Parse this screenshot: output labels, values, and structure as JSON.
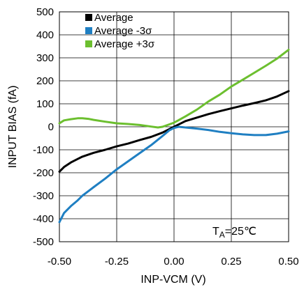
{
  "chart_data": {
    "type": "line",
    "xlabel": "INP-VCM (V)",
    "ylabel": "INPUT BIAS (fA)",
    "xlim": [
      -0.5,
      0.5
    ],
    "ylim": [
      -500,
      500
    ],
    "x_ticks": [
      "-0.50",
      "-0.25",
      "0.00",
      "0.25",
      "0.50"
    ],
    "y_ticks": [
      "500",
      "400",
      "300",
      "200",
      "100",
      "0",
      "-100",
      "-200",
      "-300",
      "-400",
      "-500"
    ],
    "grid": true,
    "legend_position": "top-left",
    "annotation": {
      "main": "T",
      "sub": "A",
      "rest": "=25℃"
    },
    "series": [
      {
        "name": "Average",
        "color": "#000000",
        "x": [
          -0.5,
          -0.48,
          -0.45,
          -0.42,
          -0.4,
          -0.37,
          -0.35,
          -0.3,
          -0.25,
          -0.2,
          -0.15,
          -0.1,
          -0.05,
          0.0,
          0.05,
          0.1,
          0.15,
          0.2,
          0.25,
          0.3,
          0.35,
          0.4,
          0.45,
          0.5
        ],
        "y": [
          -195,
          -175,
          -155,
          -140,
          -130,
          -120,
          -113,
          -100,
          -85,
          -73,
          -58,
          -44,
          -25,
          0,
          25,
          40,
          55,
          68,
          80,
          92,
          103,
          115,
          132,
          155
        ]
      },
      {
        "name": "Average -3σ",
        "color": "#1f7fc2",
        "x": [
          -0.5,
          -0.48,
          -0.45,
          -0.42,
          -0.4,
          -0.35,
          -0.3,
          -0.25,
          -0.2,
          -0.15,
          -0.1,
          -0.05,
          -0.02,
          0.0,
          0.02,
          0.05,
          0.1,
          0.15,
          0.2,
          0.25,
          0.3,
          0.35,
          0.4,
          0.45,
          0.5
        ],
        "y": [
          -415,
          -375,
          -345,
          -320,
          -300,
          -262,
          -225,
          -185,
          -150,
          -115,
          -80,
          -40,
          -15,
          -5,
          0,
          -3,
          -8,
          -14,
          -22,
          -28,
          -33,
          -36,
          -36,
          -30,
          -20
        ]
      },
      {
        "name": "Average +3σ",
        "color": "#6cbf2f",
        "x": [
          -0.5,
          -0.48,
          -0.45,
          -0.42,
          -0.4,
          -0.37,
          -0.35,
          -0.3,
          -0.25,
          -0.2,
          -0.15,
          -0.1,
          -0.07,
          -0.05,
          0.0,
          0.05,
          0.1,
          0.15,
          0.2,
          0.25,
          0.3,
          0.35,
          0.4,
          0.45,
          0.5
        ],
        "y": [
          15,
          28,
          33,
          37,
          37,
          34,
          30,
          22,
          15,
          12,
          8,
          1,
          -3,
          0,
          18,
          45,
          75,
          110,
          140,
          175,
          205,
          235,
          265,
          297,
          335
        ]
      }
    ]
  }
}
